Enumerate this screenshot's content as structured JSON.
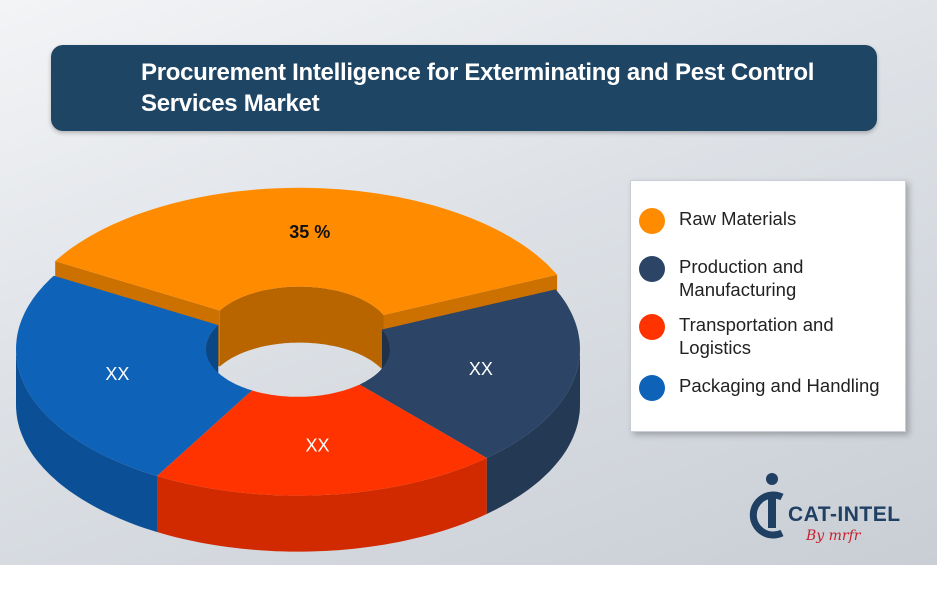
{
  "chart_data": {
    "type": "pie",
    "title": "Procurement Intelligence for Exterminating and Pest Control Services Market",
    "style": "3d-donut",
    "slices": [
      {
        "name": "Raw Materials",
        "value": 35,
        "label": "35 %",
        "color": "#ff8c00"
      },
      {
        "name": "Production and Manufacturing",
        "value": 20,
        "label": "XX",
        "color": "#2c4566"
      },
      {
        "name": "Transportation and Logistics",
        "value": 20,
        "label": "XX",
        "color": "#ff3300"
      },
      {
        "name": "Packaging and Handling",
        "value": 25,
        "label": "XX",
        "color": "#0e62b7"
      }
    ],
    "legend_placement": "right"
  },
  "legend": {
    "items": [
      {
        "label_lines": [
          "Raw Materials"
        ],
        "color": "#ff8c00"
      },
      {
        "label_lines": [
          "Production and",
          "Manufacturing"
        ],
        "color": "#2c4566"
      },
      {
        "label_lines": [
          "Transportation and",
          "Logistics"
        ],
        "color": "#ff3300"
      },
      {
        "label_lines": [
          "Packaging and Handling"
        ],
        "color": "#0e62b7"
      }
    ]
  },
  "logo": {
    "name": "CAT-INTEL",
    "by": "By mrfr"
  }
}
